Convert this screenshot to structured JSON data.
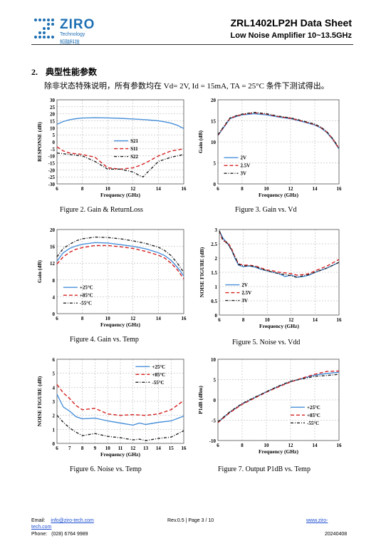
{
  "header": {
    "logo_name": "ZIRO",
    "logo_sub_en": "Technology",
    "logo_sub_cn": "知融科技",
    "title": "ZRL1402LP2H  Data  Sheet",
    "subtitle": "Low Noise Amplifier 10~13.5GHz"
  },
  "section": {
    "number": "2.",
    "title": "典型性能参数",
    "intro": "除非状态特殊说明，所有参数均在 Vd= 2V, Id = 15mA, TA = 25°C 条件下测试得出。"
  },
  "charts": [
    {
      "caption": "Figure 2. Gain & ReturnLoss",
      "chart_data": {
        "type": "line",
        "xlabel": "Frequency (GHz)",
        "ylabel": "RESPONSE (dB)",
        "xlim": [
          6,
          16
        ],
        "ylim": [
          -30,
          30
        ],
        "xticks": [
          6,
          8,
          10,
          12,
          14,
          16
        ],
        "yticks": [
          -30,
          -25,
          -20,
          -15,
          -10,
          -5,
          0,
          5,
          10,
          15,
          20,
          25,
          30
        ],
        "grid": true,
        "legend": "center-right",
        "series": [
          {
            "name": "S21",
            "color": "#4a90d9",
            "dash": "solid",
            "x": [
              6,
              6.5,
              7,
              7.5,
              8,
              9,
              10,
              11,
              12,
              13,
              14,
              14.5,
              15,
              15.5,
              16
            ],
            "y": [
              12.5,
              14.5,
              15.8,
              16.5,
              17,
              17.2,
              17.1,
              16.8,
              16.3,
              15.8,
              15,
              14.3,
              13.3,
              11.8,
              9.5
            ]
          },
          {
            "name": "S11",
            "color": "#d62020",
            "dash": "dash",
            "x": [
              6,
              6.5,
              7,
              7.5,
              8,
              9,
              10,
              11,
              12,
              12.5,
              13,
              14,
              15,
              16
            ],
            "y": [
              -3.5,
              -6.5,
              -8,
              -8.5,
              -9,
              -11,
              -18.5,
              -19.5,
              -18.5,
              -17,
              -15,
              -10,
              -6.5,
              -5
            ]
          },
          {
            "name": "S22",
            "color": "#222222",
            "dash": "dashdot",
            "x": [
              6,
              7,
              8,
              9,
              10,
              11,
              12,
              12.5,
              12.8,
              13,
              13.5,
              14,
              15,
              16
            ],
            "y": [
              -8,
              -9,
              -10,
              -14,
              -19.5,
              -19.5,
              -21.5,
              -24,
              -25,
              -23,
              -18.5,
              -14,
              -11,
              -9
            ]
          }
        ]
      }
    },
    {
      "caption": "Figure 3. Gain vs. Vd",
      "chart_data": {
        "type": "line",
        "xlabel": "Frequency (GHz)",
        "ylabel": "Gain (dB)",
        "xlim": [
          6,
          16
        ],
        "ylim": [
          0,
          20
        ],
        "xticks": [
          6,
          8,
          10,
          12,
          14,
          16
        ],
        "yticks": [
          0,
          5,
          10,
          15,
          20
        ],
        "grid": true,
        "legend": "bottom-left",
        "series": [
          {
            "name": "2V",
            "color": "#4a90d9",
            "dash": "solid",
            "x": [
              6,
              6.5,
              7,
              7.5,
              8,
              9,
              10,
              11,
              12,
              13,
              14,
              14.5,
              15,
              15.5,
              16
            ],
            "y": [
              11.5,
              13.5,
              15.5,
              16,
              16.4,
              16.7,
              16.4,
              15.9,
              15.5,
              14.8,
              14,
              13.3,
              12.2,
              10.5,
              8.3
            ]
          },
          {
            "name": "2.5V",
            "color": "#d62020",
            "dash": "dash",
            "x": [
              6,
              6.5,
              7,
              7.5,
              8,
              9,
              10,
              11,
              12,
              13,
              14,
              14.5,
              15,
              15.5,
              16
            ],
            "y": [
              11.6,
              13.6,
              15.6,
              16.1,
              16.5,
              16.9,
              16.6,
              16,
              15.6,
              14.9,
              14.1,
              13.4,
              12.3,
              10.6,
              8.4
            ]
          },
          {
            "name": "3V",
            "color": "#222222",
            "dash": "dashdot",
            "x": [
              6,
              6.5,
              7,
              7.5,
              8,
              9,
              10,
              11,
              12,
              13,
              14,
              14.5,
              15,
              15.5,
              16
            ],
            "y": [
              11.7,
              13.7,
              15.7,
              16.2,
              16.6,
              17,
              16.7,
              16.1,
              15.7,
              15,
              14.2,
              13.5,
              12.4,
              10.7,
              8.5
            ]
          }
        ]
      }
    },
    {
      "caption": "Figure 4. Gain vs. Temp",
      "chart_data": {
        "type": "line",
        "xlabel": "Frequency (GHz)",
        "ylabel": "Gain (dB)",
        "xlim": [
          6,
          16
        ],
        "ylim": [
          0,
          20
        ],
        "xticks": [
          6,
          8,
          10,
          12,
          14,
          16
        ],
        "yticks": [
          0,
          4,
          8,
          12,
          16,
          20
        ],
        "grid": true,
        "legend": "bottom-left",
        "series": [
          {
            "name": "+25°C",
            "color": "#4a90d9",
            "dash": "solid",
            "x": [
              6,
              6.5,
              7,
              7.5,
              8,
              9,
              10,
              11,
              12,
              13,
              14,
              14.5,
              15,
              15.5,
              16
            ],
            "y": [
              12.5,
              14.5,
              15.5,
              16.1,
              16.5,
              16.9,
              16.8,
              16.4,
              16,
              15.4,
              14.5,
              13.8,
              12.7,
              11,
              9
            ]
          },
          {
            "name": "+85°C",
            "color": "#d62020",
            "dash": "dash",
            "x": [
              6,
              6.5,
              7,
              7.5,
              8,
              9,
              10,
              11,
              12,
              13,
              14,
              14.5,
              15,
              15.5,
              16
            ],
            "y": [
              11.8,
              13.5,
              14.6,
              15.3,
              15.7,
              16.2,
              16.2,
              15.9,
              15.5,
              14.8,
              13.9,
              13.2,
              12,
              10.4,
              8.3
            ]
          },
          {
            "name": "-55°C",
            "color": "#222222",
            "dash": "dashdot",
            "x": [
              6,
              6.5,
              7,
              7.5,
              8,
              9,
              10,
              11,
              12,
              13,
              14,
              14.5,
              15,
              15.5,
              16
            ],
            "y": [
              13.5,
              15.5,
              16.5,
              17.3,
              17.8,
              18.2,
              18.1,
              17.8,
              17.3,
              16.7,
              15.8,
              15,
              13.8,
              12,
              9.8
            ]
          }
        ]
      }
    },
    {
      "caption": "Figure 5. Noise vs. Vdd",
      "chart_data": {
        "type": "line",
        "xlabel": "Frequency (GHz)",
        "ylabel": "NOISE FIGURE (dB)",
        "xlim": [
          6,
          16
        ],
        "ylim": [
          0,
          3
        ],
        "xticks": [
          6,
          8,
          10,
          12,
          14,
          16
        ],
        "yticks": [
          0,
          0.5,
          1,
          1.5,
          2,
          2.5,
          3
        ],
        "ytick_labels": [
          "0",
          "0.5",
          "1",
          "1.5",
          "2",
          "2.5",
          "3"
        ],
        "grid": true,
        "legend": "bottom-left",
        "series": [
          {
            "name": "2V",
            "color": "#4a90d9",
            "dash": "solid",
            "x": [
              6,
              6.3,
              6.7,
              7,
              7.3,
              7.6,
              8,
              8.5,
              9,
              9.5,
              10,
              10.5,
              11,
              11.5,
              12,
              12.5,
              13,
              13.5,
              14,
              15,
              16
            ],
            "y": [
              2.95,
              2.7,
              2.5,
              2.3,
              2,
              1.75,
              1.7,
              1.72,
              1.68,
              1.6,
              1.55,
              1.5,
              1.45,
              1.35,
              1.4,
              1.33,
              1.35,
              1.4,
              1.5,
              1.65,
              1.85
            ]
          },
          {
            "name": "2.5V",
            "color": "#d62020",
            "dash": "dash",
            "x": [
              6,
              6.3,
              6.7,
              7,
              7.3,
              7.6,
              8,
              8.5,
              9,
              9.5,
              10,
              10.5,
              11,
              11.5,
              12,
              12.5,
              13,
              13.5,
              14,
              15,
              16
            ],
            "y": [
              2.95,
              2.6,
              2.55,
              2.35,
              2.05,
              1.8,
              1.75,
              1.75,
              1.72,
              1.65,
              1.58,
              1.55,
              1.5,
              1.48,
              1.45,
              1.4,
              1.42,
              1.45,
              1.55,
              1.72,
              1.95
            ]
          },
          {
            "name": "3V",
            "color": "#222222",
            "dash": "dashdot",
            "x": [
              6,
              6.3,
              6.7,
              7,
              7.3,
              7.6,
              8,
              8.5,
              9,
              9.5,
              10,
              10.5,
              11,
              11.5,
              12,
              12.5,
              13,
              13.5,
              14,
              15,
              16
            ],
            "y": [
              2.95,
              2.65,
              2.5,
              2.3,
              2.05,
              1.78,
              1.72,
              1.73,
              1.7,
              1.62,
              1.55,
              1.5,
              1.45,
              1.42,
              1.38,
              1.32,
              1.38,
              1.42,
              1.5,
              1.65,
              1.85
            ]
          }
        ]
      }
    },
    {
      "caption": "Figure 6. Noise vs. Temp",
      "chart_data": {
        "type": "line",
        "xlabel": "Frequency (GHz)",
        "ylabel": "NOISE FIGURE (dB)",
        "xlim": [
          6,
          16
        ],
        "ylim": [
          0,
          6
        ],
        "xticks": [
          6,
          7,
          8,
          9,
          10,
          11,
          12,
          13,
          14,
          15,
          16
        ],
        "yticks": [
          0,
          1,
          2,
          3,
          4,
          5,
          6
        ],
        "grid": true,
        "legend": "top-right",
        "series": [
          {
            "name": "+25°C",
            "color": "#4a90d9",
            "dash": "solid",
            "x": [
              6,
              6.5,
              7,
              7.5,
              8,
              9,
              10,
              11,
              12,
              12.5,
              13,
              14,
              15,
              16
            ],
            "y": [
              3.5,
              2.6,
              2.3,
              1.9,
              1.75,
              1.8,
              1.6,
              1.45,
              1.3,
              1.45,
              1.35,
              1.5,
              1.6,
              1.95
            ]
          },
          {
            "name": "+85°C",
            "color": "#d62020",
            "dash": "dash",
            "x": [
              6,
              6.5,
              7,
              7.5,
              8,
              9,
              10,
              11,
              12,
              13,
              14,
              15,
              16
            ],
            "y": [
              4.2,
              3.6,
              3.2,
              2.7,
              2.4,
              2.5,
              2.1,
              2,
              2.05,
              2,
              2.1,
              2.4,
              3.05
            ]
          },
          {
            "name": "-55°C",
            "color": "#222222",
            "dash": "dashdot",
            "x": [
              6,
              6.5,
              7,
              7.5,
              8,
              9,
              10,
              11,
              12,
              12.5,
              13,
              14,
              15,
              16
            ],
            "y": [
              2,
              1.5,
              1.1,
              0.8,
              0.55,
              0.7,
              0.5,
              0.4,
              0.25,
              0.3,
              0.2,
              0.35,
              0.45,
              0.9
            ]
          }
        ]
      }
    },
    {
      "caption": "Figure 7. Output P1dB vs. Temp",
      "chart_data": {
        "type": "line",
        "xlabel": "Frequency (GHz)",
        "ylabel": "P1dB (dBm)",
        "xlim": [
          6,
          16
        ],
        "ylim": [
          -10,
          10
        ],
        "xticks": [
          6,
          8,
          10,
          12,
          14,
          16
        ],
        "yticks": [
          -10,
          -5,
          0,
          5,
          10
        ],
        "grid": true,
        "legend": "bottom-right",
        "series": [
          {
            "name": "+25°C",
            "color": "#4a90d9",
            "dash": "solid",
            "x": [
              6,
              7,
              8,
              9,
              10,
              11,
              12,
              13,
              14,
              15,
              16
            ],
            "y": [
              -5.5,
              -3,
              -1,
              0.5,
              2,
              3.3,
              4.5,
              5.3,
              6.1,
              6.5,
              6.8
            ]
          },
          {
            "name": "+85°C",
            "color": "#d62020",
            "dash": "dash",
            "x": [
              6,
              7,
              8,
              9,
              10,
              11,
              12,
              13,
              14,
              15,
              16
            ],
            "y": [
              -5.6,
              -3.1,
              -1.1,
              0.4,
              1.9,
              3.2,
              4.4,
              5.4,
              6.3,
              7,
              7.1
            ]
          },
          {
            "name": "-55°C",
            "color": "#222222",
            "dash": "dashdot",
            "x": [
              6,
              7,
              8,
              9,
              10,
              11,
              12,
              13,
              14,
              15,
              16
            ],
            "y": [
              -5.4,
              -2.9,
              -0.9,
              0.6,
              2,
              3.4,
              4.6,
              5.2,
              5.8,
              6,
              6.3
            ]
          }
        ]
      }
    }
  ],
  "footer": {
    "email_label": "Email:",
    "email": "info@ziro-tech.com",
    "phone_label": "Phone:",
    "phone": "(028) 6764 9989",
    "page_info": "Rev.0.5 | Page 3 / 10",
    "website_line1": "www.ziro-",
    "website_line2": "tech.com",
    "date": "20240408"
  }
}
